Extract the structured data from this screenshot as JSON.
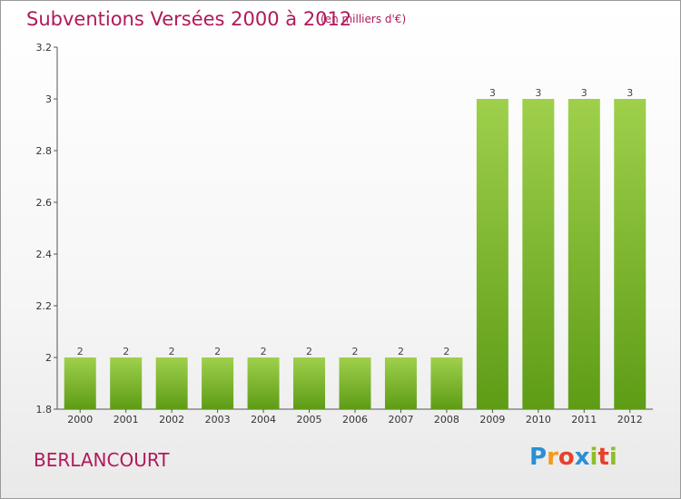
{
  "chart_data": {
    "type": "bar",
    "title": "Subventions Versées 2000 à 2012",
    "subtitle": "(en milliers d'€)",
    "xlabel": "",
    "ylabel": "",
    "categories": [
      "2000",
      "2001",
      "2002",
      "2003",
      "2004",
      "2005",
      "2006",
      "2007",
      "2008",
      "2009",
      "2010",
      "2011",
      "2012"
    ],
    "values": [
      2,
      2,
      2,
      2,
      2,
      2,
      2,
      2,
      2,
      3,
      3,
      3,
      3
    ],
    "data_labels": [
      "2",
      "2",
      "2",
      "2",
      "2",
      "2",
      "2",
      "2",
      "2",
      "3",
      "3",
      "3",
      "3"
    ],
    "ylim": [
      1.8,
      3.2
    ],
    "yticks": [
      1.8,
      2,
      2.2,
      2.4,
      2.6,
      2.8,
      3,
      3.2
    ],
    "ytick_labels": [
      "1.8",
      "2",
      "2.2",
      "2.4",
      "2.6",
      "2.8",
      "3",
      "3.2"
    ],
    "grid": false,
    "legend": "none",
    "bar_color": "#7fbf2a"
  },
  "footer": {
    "place": "BERLANCOURT",
    "logo": {
      "letters": [
        "P",
        "r",
        "o",
        "x",
        "i",
        "t",
        "i"
      ],
      "colors": [
        "#2a8fd4",
        "#f39a1c",
        "#e8412b",
        "#2a8fd4",
        "#8cbf26",
        "#e8412b",
        "#8cbf26"
      ]
    }
  },
  "colors": {
    "title": "#b0195a",
    "axis": "#555555"
  }
}
